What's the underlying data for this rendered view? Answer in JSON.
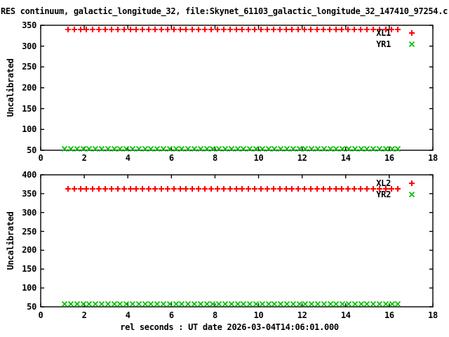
{
  "title": "RES continuum, galactic_longitude_32, file:Skynet_61103_galactic_longitude_32_147410_97254.c",
  "xlabel": "rel seconds : UT date 2026-03-04T14:06:01.000",
  "colors": {
    "background": "#ffffff",
    "axis": "#000000",
    "text": "#000000",
    "series_red": "#ff0000",
    "series_green": "#00c000"
  },
  "chart_data": [
    {
      "type": "scatter",
      "subplot": "top",
      "title": "",
      "xlabel": "",
      "ylabel": "Uncalibrated",
      "xlim": [
        0,
        18
      ],
      "ylim": [
        50,
        350
      ],
      "xticks": [
        0,
        2,
        4,
        6,
        8,
        10,
        12,
        14,
        16,
        18
      ],
      "yticks": [
        50,
        100,
        150,
        200,
        250,
        300,
        350
      ],
      "grid": false,
      "legend_position": "inside-top-right",
      "series": [
        {
          "name": "XL1",
          "marker": "plus",
          "color": "#ff0000",
          "x_start": 1.25,
          "x_end": 16.4,
          "n_points": 54,
          "y_constant": 340
        },
        {
          "name": "YR1",
          "marker": "cross",
          "color": "#00c000",
          "x_start": 1.1,
          "x_end": 16.4,
          "n_points": 55,
          "y_constant": 54
        }
      ]
    },
    {
      "type": "scatter",
      "subplot": "bottom",
      "title": "",
      "xlabel": "",
      "ylabel": "Uncalibrated",
      "xlim": [
        0,
        18
      ],
      "ylim": [
        50,
        400
      ],
      "xticks": [
        0,
        2,
        4,
        6,
        8,
        10,
        12,
        14,
        16,
        18
      ],
      "yticks": [
        50,
        100,
        150,
        200,
        250,
        300,
        350,
        400
      ],
      "grid": false,
      "legend_position": "inside-top-right",
      "series": [
        {
          "name": "XL2",
          "marker": "plus",
          "color": "#ff0000",
          "x_start": 1.25,
          "x_end": 16.4,
          "n_points": 54,
          "y_constant": 362
        },
        {
          "name": "YR2",
          "marker": "cross",
          "color": "#00c000",
          "x_start": 1.1,
          "x_end": 16.4,
          "n_points": 55,
          "y_constant": 58
        }
      ]
    }
  ]
}
